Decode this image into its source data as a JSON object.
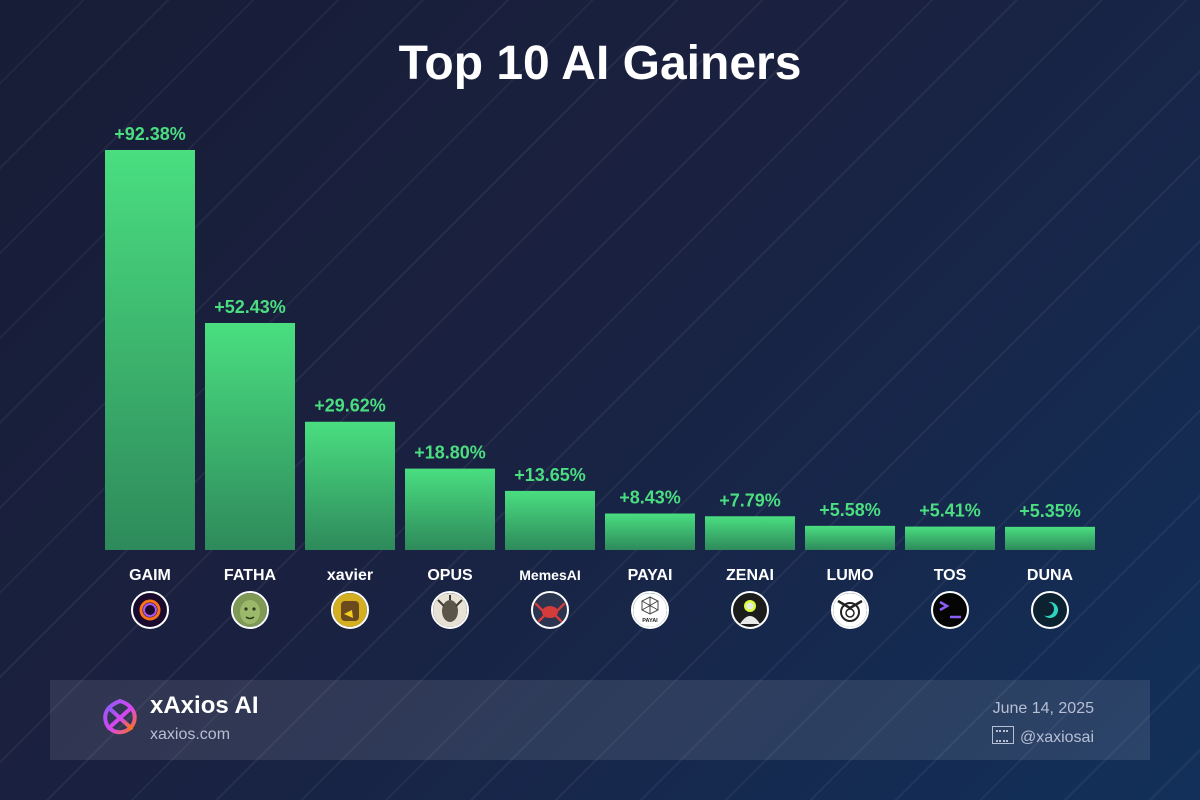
{
  "chart_data": {
    "type": "bar",
    "title": "Top 10 AI Gainers",
    "xlabel": "",
    "ylabel": "",
    "ylim": [
      0,
      92.38
    ],
    "grid": false,
    "categories": [
      "GAIM",
      "FATHA",
      "xavier",
      "OPUS",
      "MemesAI",
      "PAYAI",
      "ZENAI",
      "LUMO",
      "TOS",
      "DUNA"
    ],
    "values": [
      92.38,
      52.43,
      29.62,
      18.8,
      13.65,
      8.43,
      7.79,
      5.58,
      5.41,
      5.35
    ],
    "data_labels": [
      "+92.38%",
      "+52.43%",
      "+29.62%",
      "+18.80%",
      "+13.65%",
      "+8.43%",
      "+7.79%",
      "+5.58%",
      "+5.41%",
      "+5.35%"
    ],
    "token_icons": [
      "gaim-ring-icon",
      "fatha-ape-icon",
      "xavier-duck-icon",
      "opus-statue-icon",
      "memesai-crab-icon",
      "payai-cube-icon",
      "zenai-figure-icon",
      "lumo-owl-icon",
      "tos-terminal-icon",
      "duna-moon-icon"
    ],
    "icon_text": {
      "payai": "PAYAI"
    },
    "bar_color_top": "#4ade80",
    "bar_color_bottom": "#2e8a5b",
    "label_color": "#4ade80"
  },
  "footer": {
    "brand_name": "xAxios AI",
    "brand_url": "xaxios.com",
    "date": "June 14, 2025",
    "handle": "@xaxiosai",
    "logo_icon": "xaxios-logo-icon",
    "handle_icon": "x-social-icon"
  }
}
